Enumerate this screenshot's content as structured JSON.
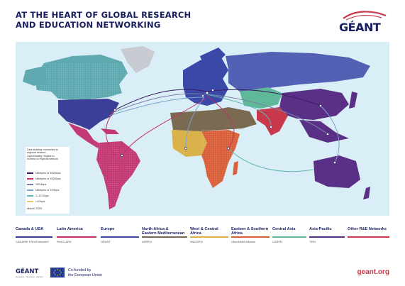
{
  "title": {
    "line1": "AT THE HEART OF GLOBAL RESEARCH",
    "line2": "AND EDUCATION NETWORKING"
  },
  "logo": {
    "text": "GÉANT"
  },
  "legend": {
    "shading_line1": "Dark shading: connected to",
    "shading_line2": "regional network",
    "shading_line3": "Light shading: eligible to",
    "shading_line4": "connect to regional network",
    "items": [
      {
        "label": "Multiples of 400Gbps",
        "color": "#3b1d5e"
      },
      {
        "label": "Multiples of 100Gbps",
        "color": "#c0306b"
      },
      {
        "label": "100Gbps",
        "color": "#7a7fa8"
      },
      {
        "label": "Multiples of 10Gbps",
        "color": "#7aa3c8"
      },
      {
        "label": "1–10 Gbps",
        "color": "#5fb7b0"
      },
      {
        "label": "<1Gbps",
        "color": "#e0c870"
      }
    ],
    "date": "March 2023"
  },
  "regions": [
    {
      "name1": "Canada & USA",
      "name2": "",
      "color": "#3c3f98",
      "logos": "CANARIE   ESnet   Internet2"
    },
    {
      "name1": "Latin America",
      "name2": "",
      "color": "#c0306b",
      "logos": "RedCLARA"
    },
    {
      "name1": "Europe",
      "name2": "",
      "color": "#3a48a8",
      "logos": "GÉANT"
    },
    {
      "name1": "North Africa &",
      "name2": "Eastern Mediterranean",
      "color": "#7a6a52",
      "logos": "ASREN"
    },
    {
      "name1": "West & Central",
      "name2": "Africa",
      "color": "#d9b24c",
      "logos": "WACREN"
    },
    {
      "name1": "Eastern & Southern",
      "name2": "Africa",
      "color": "#d9603a",
      "logos": "UbuntuNet Alliance"
    },
    {
      "name1": "Central Asia",
      "name2": "",
      "color": "#5fb89a",
      "logos": "CAREN"
    },
    {
      "name1": "Asia-Pacific",
      "name2": "",
      "color": "#5a2f86",
      "logos": "TEIN"
    },
    {
      "name1": "Other R&E Networks",
      "name2": "",
      "color": "#c83a4b",
      "logos": ""
    }
  ],
  "footer": {
    "geant": "GÉANT",
    "geant_sub": "Networks · Services · People",
    "cofund1": "Co-funded by",
    "cofund2": "the European Union",
    "url": "geant.org"
  },
  "colors": {
    "ocean": "#d9eef6",
    "north_america": "#3b3f96",
    "canada_teal": "#5eaab0",
    "latin_america": "#c43a74",
    "europe": "#3a48a8",
    "north_africa": "#7a6a52",
    "west_africa": "#d9b24c",
    "east_africa": "#d9603a",
    "central_asia": "#5fb89a",
    "asia_pacific": "#5a2f86",
    "other": "#c83a4b",
    "russia": "#3a48a8",
    "greenland": "#c9cbd2"
  }
}
